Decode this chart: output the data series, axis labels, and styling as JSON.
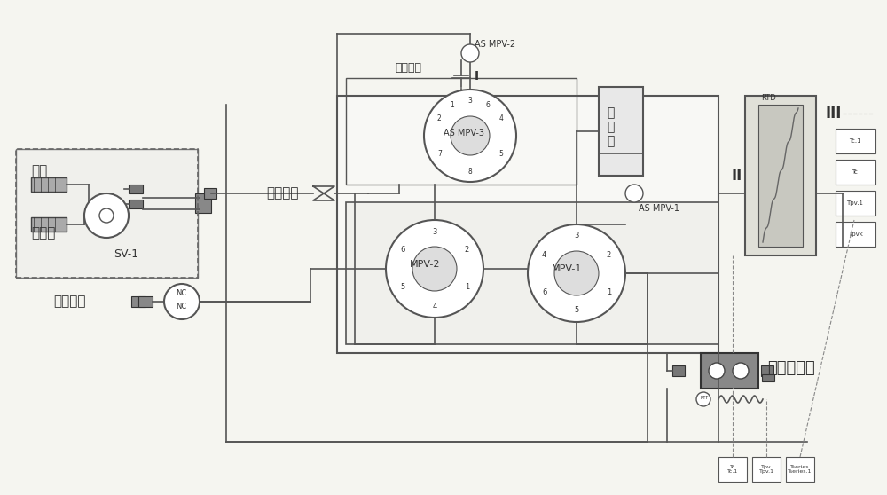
{
  "bg_color": "#f5f5f0",
  "line_color": "#555555",
  "dark_color": "#333333",
  "box_fill": "#888888",
  "title": "",
  "labels": {
    "qixiangzaiqi": "气相载气",
    "zaiqi": "载气",
    "liejieqi_label": "裂解气",
    "sv1": "SV-1",
    "pinpinzaiqi": "样品载气",
    "quxiangse": "去气相色谱",
    "liejieshi": "裂\n解\n室",
    "qitipaikong": "气体排空",
    "roman_I": "I",
    "roman_II": "II",
    "roman_III": "III",
    "mpv2": "MPV-2",
    "mpv1": "MPV-1",
    "asmpv3": "AS MPV-3",
    "asmpv1": "AS MPV-1",
    "asmpv2": "AS MPV-2"
  }
}
